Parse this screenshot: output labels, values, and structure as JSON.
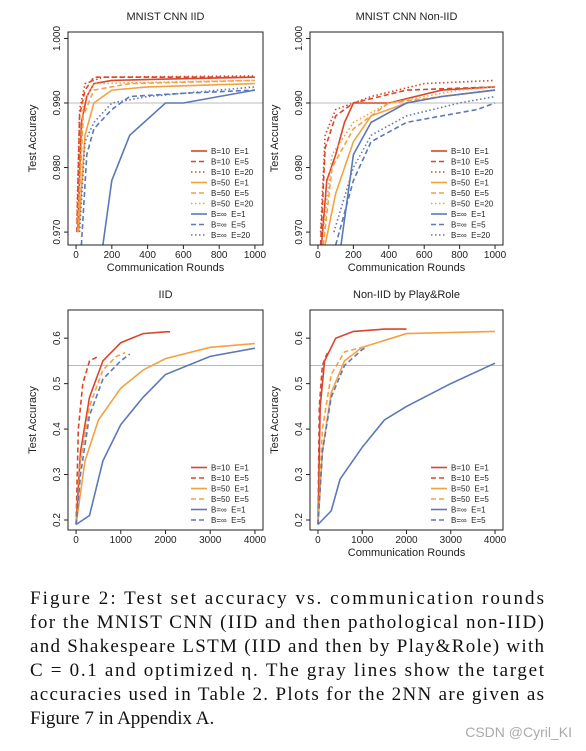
{
  "chart_data": [
    {
      "type": "line",
      "title": "MNIST CNN IID",
      "xlabel": "Communication Rounds",
      "ylabel": "Test Accuracy",
      "xlim": [
        -45,
        1045
      ],
      "ylim": [
        0.968,
        1.001
      ],
      "xticks": [
        0,
        200,
        400,
        600,
        800,
        1000
      ],
      "yticks": [
        {
          "value": 0.97,
          "label": "0.970"
        },
        {
          "value": 0.98,
          "label": "0.980"
        },
        {
          "value": 0.99,
          "label": "0.990"
        },
        {
          "value": 1,
          "label": "1.000"
        }
      ],
      "target_line": 0.99,
      "legend": "lower right",
      "series": [
        {
          "name": "B=10  E=1",
          "color": "#d9462b",
          "dash": "solid",
          "x": [
            10,
            30,
            60,
            100,
            200,
            500,
            1000
          ],
          "values": [
            0.97,
            0.987,
            0.991,
            0.993,
            0.9935,
            0.9937,
            0.994
          ]
        },
        {
          "name": "B=10  E=5",
          "color": "#d9462b",
          "dash": "dashed",
          "x": [
            5,
            20,
            50,
            100,
            300,
            1000
          ],
          "values": [
            0.97,
            0.988,
            0.992,
            0.994,
            0.994,
            0.994
          ]
        },
        {
          "name": "B=10  E=20",
          "color": "#d9462b",
          "dash": "dotted",
          "x": [
            5,
            20,
            50,
            150,
            1000
          ],
          "values": [
            0.972,
            0.989,
            0.993,
            0.994,
            0.9942
          ]
        },
        {
          "name": "B=50  E=1",
          "color": "#f5a142",
          "dash": "solid",
          "x": [
            15,
            50,
            100,
            200,
            400,
            1000
          ],
          "values": [
            0.97,
            0.985,
            0.99,
            0.992,
            0.9925,
            0.993
          ]
        },
        {
          "name": "B=50  E=5",
          "color": "#f5a142",
          "dash": "dashed",
          "x": [
            10,
            40,
            100,
            300,
            1000
          ],
          "values": [
            0.97,
            0.988,
            0.992,
            0.993,
            0.9935
          ]
        },
        {
          "name": "B=50  E=20",
          "color": "#f5a142",
          "dash": "dotted",
          "x": [
            10,
            40,
            100,
            1000
          ],
          "values": [
            0.972,
            0.99,
            0.993,
            0.9935
          ]
        },
        {
          "name": "B=∞  E=1",
          "color": "#5b78b8",
          "dash": "solid",
          "x": [
            150,
            200,
            300,
            500,
            600,
            800,
            1000
          ],
          "values": [
            0.968,
            0.978,
            0.985,
            0.99,
            0.99,
            0.991,
            0.992
          ]
        },
        {
          "name": "B=∞  E=5",
          "color": "#5b78b8",
          "dash": "dashed",
          "x": [
            30,
            60,
            100,
            200,
            300,
            600,
            1000
          ],
          "values": [
            0.968,
            0.982,
            0.986,
            0.989,
            0.991,
            0.9915,
            0.992
          ]
        },
        {
          "name": "B=∞  E=20",
          "color": "#5b78b8",
          "dash": "dotted",
          "x": [
            20,
            50,
            100,
            200,
            400,
            1000
          ],
          "values": [
            0.97,
            0.984,
            0.987,
            0.99,
            0.991,
            0.9925
          ]
        }
      ]
    },
    {
      "type": "line",
      "title": "MNIST CNN Non-IID",
      "xlabel": "Communication Rounds",
      "ylabel": "Test Accuracy",
      "xlim": [
        -45,
        1045
      ],
      "ylim": [
        0.968,
        1.001
      ],
      "xticks": [
        0,
        200,
        400,
        600,
        800,
        1000
      ],
      "yticks": [
        {
          "value": 0.97,
          "label": "0.970"
        },
        {
          "value": 0.98,
          "label": "0.980"
        },
        {
          "value": 0.99,
          "label": "0.990"
        },
        {
          "value": 1,
          "label": "1.000"
        }
      ],
      "target_line": 0.99,
      "legend": "lower right",
      "series": [
        {
          "name": "B=10  E=1",
          "color": "#d9462b",
          "dash": "solid",
          "x": [
            20,
            50,
            100,
            150,
            200,
            400,
            700,
            1000
          ],
          "values": [
            0.968,
            0.978,
            0.982,
            0.987,
            0.99,
            0.99,
            0.992,
            0.9925
          ]
        },
        {
          "name": "B=10  E=5",
          "color": "#d9462b",
          "dash": "dashed",
          "x": [
            15,
            40,
            100,
            200,
            500,
            1000
          ],
          "values": [
            0.968,
            0.983,
            0.988,
            0.99,
            0.992,
            0.9925
          ]
        },
        {
          "name": "B=10  E=20",
          "color": "#d9462b",
          "dash": "dotted",
          "x": [
            15,
            40,
            100,
            300,
            600,
            1000
          ],
          "values": [
            0.97,
            0.985,
            0.989,
            0.991,
            0.993,
            0.9935
          ]
        },
        {
          "name": "B=50  E=1",
          "color": "#f5a142",
          "dash": "solid",
          "x": [
            40,
            100,
            200,
            300,
            500,
            700,
            1000
          ],
          "values": [
            0.968,
            0.976,
            0.984,
            0.988,
            0.99,
            0.991,
            0.992
          ]
        },
        {
          "name": "B=50  E=5",
          "color": "#f5a142",
          "dash": "dashed",
          "x": [
            30,
            80,
            200,
            400,
            700,
            1000
          ],
          "values": [
            0.968,
            0.98,
            0.986,
            0.99,
            0.991,
            0.992
          ]
        },
        {
          "name": "B=50  E=20",
          "color": "#f5a142",
          "dash": "dotted",
          "x": [
            30,
            80,
            200,
            400,
            800,
            1000
          ],
          "values": [
            0.97,
            0.982,
            0.987,
            0.99,
            0.992,
            0.9925
          ]
        },
        {
          "name": "B=∞  E=1",
          "color": "#5b78b8",
          "dash": "solid",
          "x": [
            130,
            200,
            300,
            500,
            700,
            1000
          ],
          "values": [
            0.968,
            0.982,
            0.987,
            0.99,
            0.991,
            0.992
          ]
        },
        {
          "name": "B=∞  E=5",
          "color": "#5b78b8",
          "dash": "dashed",
          "x": [
            100,
            200,
            300,
            500,
            700,
            900,
            1000
          ],
          "values": [
            0.968,
            0.978,
            0.984,
            0.987,
            0.988,
            0.989,
            0.99
          ]
        },
        {
          "name": "B=∞  E=20",
          "color": "#5b78b8",
          "dash": "dotted",
          "x": [
            90,
            200,
            300,
            500,
            800,
            1000
          ],
          "values": [
            0.97,
            0.98,
            0.985,
            0.988,
            0.99,
            0.991
          ]
        }
      ]
    },
    {
      "type": "line",
      "title": "IID",
      "ylabel": "Test Accuracy",
      "xlim": [
        -180,
        4180
      ],
      "ylim": [
        0.178,
        0.662
      ],
      "xticks": [
        0,
        1000,
        2000,
        3000,
        4000
      ],
      "yticks": [
        0.2,
        0.3,
        0.4,
        0.5,
        0.6
      ],
      "target_line": 0.54,
      "legend": "lower right",
      "series": [
        {
          "name": "B=10  E=1",
          "color": "#d9462b",
          "dash": "solid",
          "x": [
            0,
            100,
            300,
            600,
            1000,
            1500,
            2000,
            2100
          ],
          "values": [
            0.19,
            0.35,
            0.47,
            0.55,
            0.59,
            0.61,
            0.614,
            0.614
          ]
        },
        {
          "name": "B=10  E=5",
          "color": "#d9462b",
          "dash": "dashed",
          "x": [
            0,
            50,
            150,
            300,
            500
          ],
          "values": [
            0.19,
            0.4,
            0.5,
            0.55,
            0.56
          ]
        },
        {
          "name": "B=50  E=1",
          "color": "#f5a142",
          "dash": "solid",
          "x": [
            0,
            200,
            500,
            1000,
            1500,
            2000,
            3000,
            4000
          ],
          "values": [
            0.19,
            0.33,
            0.42,
            0.49,
            0.53,
            0.555,
            0.58,
            0.588
          ]
        },
        {
          "name": "B=50  E=5",
          "color": "#f5a142",
          "dash": "dashed",
          "x": [
            0,
            100,
            300,
            600,
            900,
            1100
          ],
          "values": [
            0.19,
            0.33,
            0.45,
            0.53,
            0.56,
            0.568
          ]
        },
        {
          "name": "B=∞  E=1",
          "color": "#5b78b8",
          "dash": "solid",
          "x": [
            0,
            300,
            600,
            1000,
            1500,
            2000,
            3000,
            4000
          ],
          "values": [
            0.19,
            0.21,
            0.33,
            0.41,
            0.47,
            0.52,
            0.56,
            0.578
          ]
        },
        {
          "name": "B=∞  E=5",
          "color": "#5b78b8",
          "dash": "dashed",
          "x": [
            0,
            100,
            300,
            600,
            1000,
            1200
          ],
          "values": [
            0.19,
            0.3,
            0.43,
            0.51,
            0.55,
            0.565
          ]
        }
      ]
    },
    {
      "type": "line",
      "title": "Non-IID by Play&Role",
      "xlabel": "Communication Rounds",
      "ylabel": "Test Accuracy",
      "xlim": [
        -180,
        4180
      ],
      "ylim": [
        0.178,
        0.662
      ],
      "xticks": [
        0,
        1000,
        2000,
        3000,
        4000
      ],
      "yticks": [
        0.2,
        0.3,
        0.4,
        0.5,
        0.6
      ],
      "target_line": 0.54,
      "legend": "lower right",
      "series": [
        {
          "name": "B=10  E=1",
          "color": "#d9462b",
          "dash": "solid",
          "x": [
            0,
            50,
            150,
            400,
            800,
            1500,
            2000
          ],
          "values": [
            0.19,
            0.45,
            0.55,
            0.6,
            0.615,
            0.62,
            0.62
          ]
        },
        {
          "name": "B=10  E=5",
          "color": "#d9462b",
          "dash": "dashed",
          "x": [
            0,
            30,
            100,
            200,
            300
          ],
          "values": [
            0.19,
            0.45,
            0.54,
            0.565,
            0.57
          ]
        },
        {
          "name": "B=50  E=1",
          "color": "#f5a142",
          "dash": "solid",
          "x": [
            0,
            100,
            300,
            600,
            1000,
            2000,
            4000
          ],
          "values": [
            0.19,
            0.35,
            0.48,
            0.55,
            0.58,
            0.61,
            0.615
          ]
        },
        {
          "name": "B=50  E=5",
          "color": "#f5a142",
          "dash": "dashed",
          "x": [
            0,
            100,
            300,
            600,
            1000
          ],
          "values": [
            0.19,
            0.4,
            0.52,
            0.57,
            0.58
          ]
        },
        {
          "name": "B=∞  E=1",
          "color": "#5b78b8",
          "dash": "solid",
          "x": [
            0,
            300,
            500,
            1000,
            1500,
            2000,
            3000,
            4000
          ],
          "values": [
            0.19,
            0.22,
            0.29,
            0.36,
            0.42,
            0.45,
            0.5,
            0.545
          ]
        },
        {
          "name": "B=∞  E=5",
          "color": "#5b78b8",
          "dash": "dashed",
          "x": [
            0,
            100,
            300,
            600,
            1000,
            1100
          ],
          "values": [
            0.19,
            0.35,
            0.47,
            0.54,
            0.575,
            0.58
          ]
        }
      ]
    }
  ],
  "caption": [
    "Figure 2:  Test set accuracy vs.  communication rounds",
    "for the MNIST CNN (IID and then pathological non-IID)",
    "and Shakespeare LSTM (IID and then by Play&Role) with",
    "C = 0.1 and optimized η. The gray lines show the target",
    "accuracies used in Table 2. Plots for the 2NN are given as",
    "Figure 7 in Appendix A."
  ],
  "watermark": "CSDN @Cyril_KI"
}
